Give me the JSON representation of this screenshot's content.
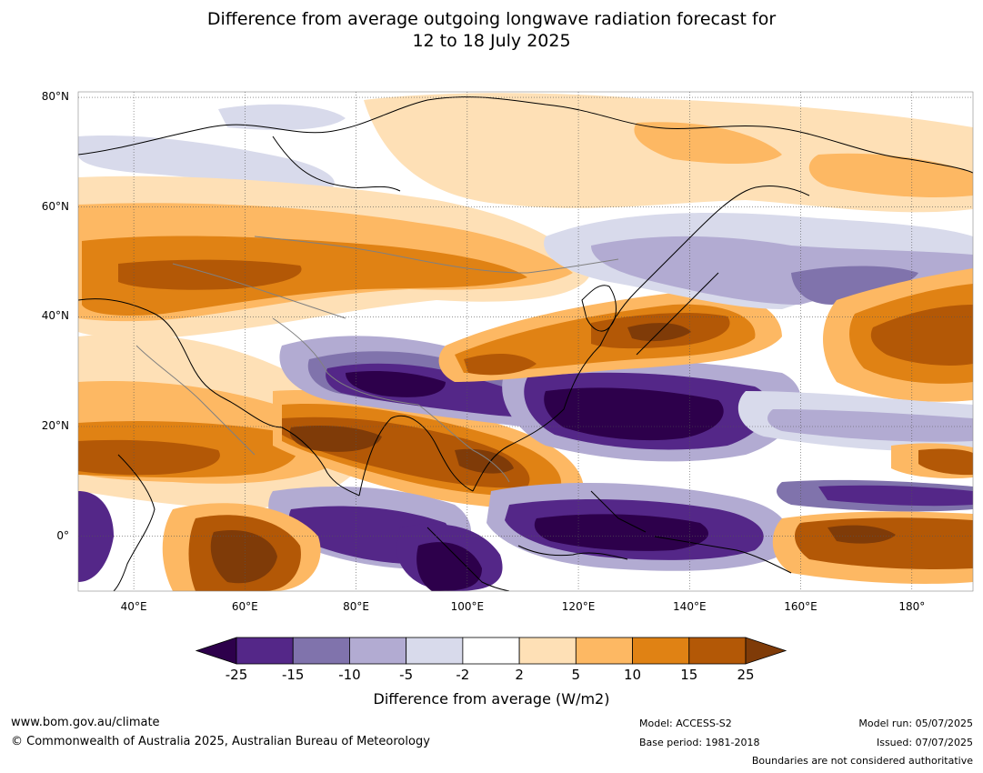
{
  "title": {
    "line1": "Difference from average outgoing longwave radiation forecast for",
    "line2": "12 to 18 July 2025"
  },
  "map": {
    "extent": {
      "lon_min": 30,
      "lon_max": 191,
      "lat_min": -10,
      "lat_max": 81
    },
    "lat_ticks": [
      {
        "value": 80,
        "label": "80°N"
      },
      {
        "value": 60,
        "label": "60°N"
      },
      {
        "value": 40,
        "label": "40°N"
      },
      {
        "value": 20,
        "label": "20°N"
      },
      {
        "value": 0,
        "label": "0°"
      }
    ],
    "lon_ticks": [
      {
        "value": 40,
        "label": "40°E"
      },
      {
        "value": 60,
        "label": "60°E"
      },
      {
        "value": 80,
        "label": "80°E"
      },
      {
        "value": 100,
        "label": "100°E"
      },
      {
        "value": 120,
        "label": "120°E"
      },
      {
        "value": 140,
        "label": "140°E"
      },
      {
        "value": 160,
        "label": "160°E"
      },
      {
        "value": 180,
        "label": "180°"
      }
    ],
    "gridlines": "dotted"
  },
  "colorbar": {
    "extend_low_color": "#2d004b",
    "extend_high_color": "#7f3b08",
    "bins": [
      {
        "from": "-25",
        "to": "-15",
        "color": "#542788"
      },
      {
        "from": "-15",
        "to": "-10",
        "color": "#8073ac"
      },
      {
        "from": "-10",
        "to": "-5",
        "color": "#b2abd2"
      },
      {
        "from": "-5",
        "to": "-2",
        "color": "#d8daeb"
      },
      {
        "from": "-2",
        "to": "2",
        "color": "#ffffff"
      },
      {
        "from": "2",
        "to": "5",
        "color": "#fee0b6"
      },
      {
        "from": "5",
        "to": "10",
        "color": "#fdb863"
      },
      {
        "from": "10",
        "to": "15",
        "color": "#e08214"
      },
      {
        "from": "15",
        "to": "25",
        "color": "#b35806"
      }
    ],
    "ticks": [
      "-25",
      "-15",
      "-10",
      "-5",
      "-2",
      "2",
      "5",
      "10",
      "15",
      "25"
    ],
    "label": "Difference from average (W/m2)"
  },
  "footer": {
    "website": "www.bom.gov.au/climate",
    "copyright": "© Commonwealth of Australia 2025, Australian Bureau of Meteorology",
    "model": "Model: ACCESS-S2",
    "base_period": "Base period: 1981-2018",
    "model_run": "Model run: 05/07/2025",
    "issued": "Issued: 07/07/2025",
    "disclaimer": "Boundaries are not considered authoritative"
  }
}
